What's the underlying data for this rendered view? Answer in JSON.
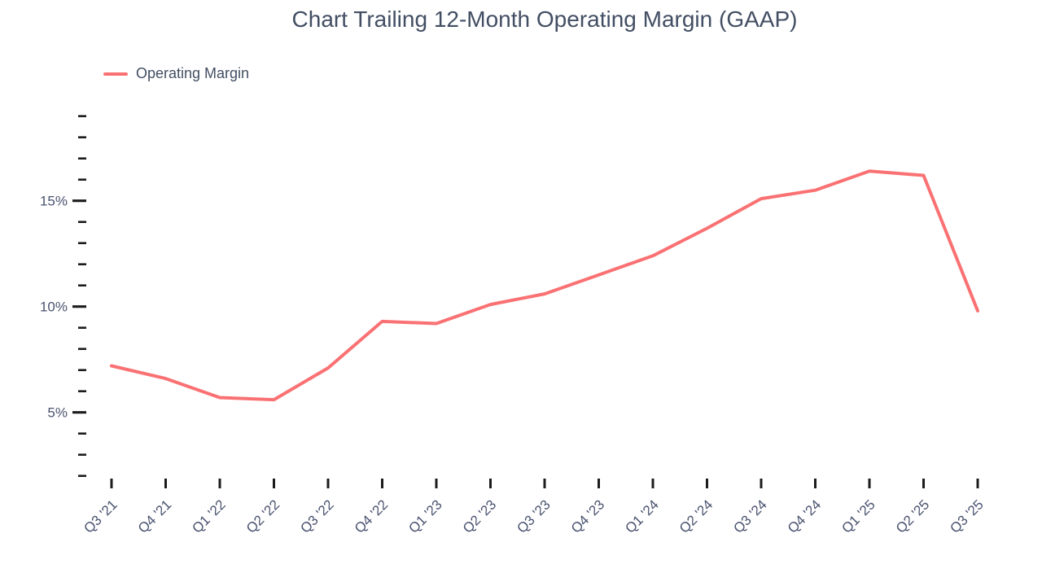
{
  "page": {
    "background": "#ffffff"
  },
  "chart_data": {
    "type": "line",
    "title": "Chart Trailing 12-Month Operating Margin (GAAP)",
    "categories": [
      "Q3 '21",
      "Q4 '21",
      "Q1 '22",
      "Q2 '22",
      "Q3 '22",
      "Q4 '22",
      "Q1 '23",
      "Q2 '23",
      "Q3 '23",
      "Q4 '23",
      "Q1 '24",
      "Q2 '24",
      "Q3 '24",
      "Q4 '24",
      "Q1 '25",
      "Q2 '25",
      "Q3 '25"
    ],
    "series": [
      {
        "name": "Operating Margin",
        "color": "#FA7173",
        "values": [
          7.2,
          6.6,
          5.7,
          5.6,
          7.1,
          9.3,
          9.2,
          10.1,
          10.6,
          11.5,
          12.4,
          13.7,
          15.1,
          15.5,
          16.4,
          16.2,
          9.8
        ]
      }
    ],
    "y_axis": {
      "min": 2,
      "max": 19,
      "minor_step": 1,
      "labeled_ticks": [
        {
          "value": 15,
          "label": "15%"
        },
        {
          "value": 10,
          "label": "10%"
        },
        {
          "value": 5,
          "label": "5%"
        }
      ]
    },
    "x_axis": {
      "label_rotation": -45
    },
    "grid": false,
    "legend_position": "top-left"
  },
  "style": {
    "title_color": "#424E63",
    "axis_text_color": "#4A5370",
    "tick_color": "#1C1C1C",
    "line_color": "#FA7173"
  }
}
